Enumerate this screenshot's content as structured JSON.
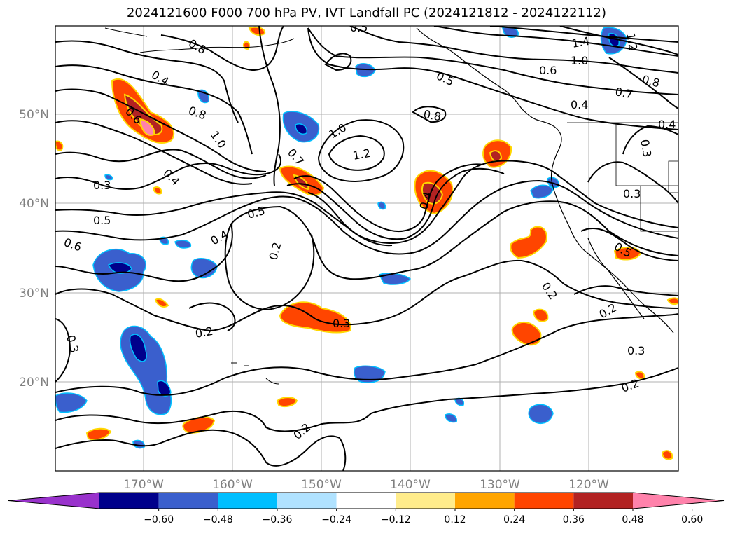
{
  "title": "2024121600 F000 700 hPa PV, IVT Landfall PC (2024121812 - 2024122112)",
  "map": {
    "lat_labels": [
      "50°N",
      "40°N",
      "30°N",
      "20°N"
    ],
    "lon_labels": [
      "170°W",
      "160°W",
      "150°W",
      "140°W",
      "130°W",
      "120°W"
    ],
    "contour_labels": [
      "0.5",
      "0.8",
      "0.4",
      "0.6",
      "0.8",
      "1.0",
      "1.4",
      "1.0",
      "1.2",
      "0.6",
      "0.5",
      "0.8",
      "0.7",
      "0.8",
      "0.4",
      "0.4",
      "0.3",
      "1.0",
      "1.2",
      "0.7",
      "0.3",
      "0.4",
      "0.3",
      "0.5",
      "0.5",
      "0.6",
      "0.4",
      "0.2",
      "0.4",
      "0.5",
      "0.2",
      "0.2",
      "0.3",
      "0.2",
      "0.3",
      "0.3",
      "0.2",
      "0.2"
    ]
  },
  "colorbar": {
    "ticks": [
      "−0.60",
      "−0.48",
      "−0.36",
      "−0.24",
      "−0.12",
      "0.12",
      "0.24",
      "0.36",
      "0.48",
      "0.60"
    ],
    "colors": [
      "#9932cc",
      "#00008b",
      "#3a5fcd",
      "#00bfff",
      "#b0e2ff",
      "#ffffff",
      "#ffec8b",
      "#ffa500",
      "#ff4500",
      "#b22222",
      "#ff82ab"
    ]
  }
}
